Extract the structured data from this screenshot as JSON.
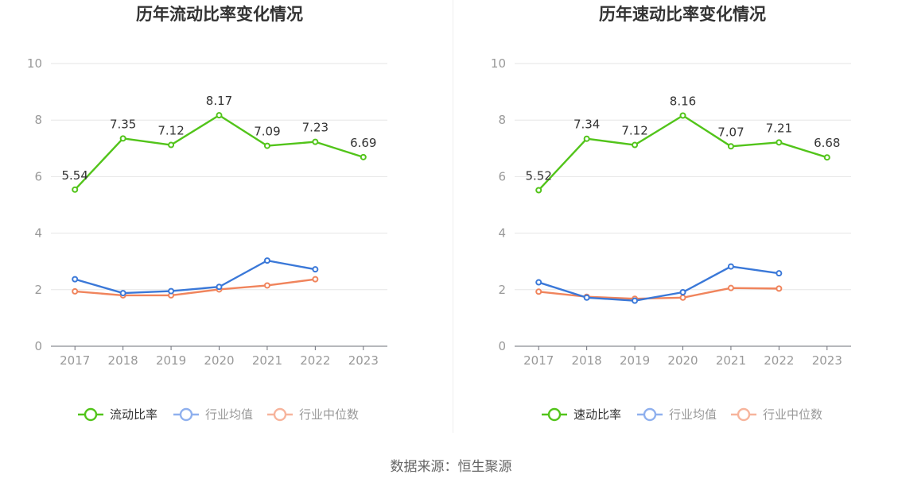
{
  "source_label": "数据来源：恒生聚源",
  "chart_data": [
    {
      "type": "line",
      "title": "历年流动比率变化情况",
      "categories": [
        "2017",
        "2018",
        "2019",
        "2020",
        "2021",
        "2022",
        "2023"
      ],
      "ylim": [
        0,
        10
      ],
      "yticks": [
        0,
        2,
        4,
        6,
        8,
        10
      ],
      "grid": true,
      "legend_position": "bottom",
      "series": [
        {
          "name": "流动比率",
          "color": "#52c41a",
          "values": [
            5.54,
            7.35,
            7.12,
            8.17,
            7.09,
            7.23,
            6.69
          ],
          "labels": [
            "5.54",
            "7.35",
            "7.12",
            "8.17",
            "7.09",
            "7.23",
            "6.69"
          ]
        },
        {
          "name": "行业均值",
          "color": "#3a78d8",
          "legend_color": "#8fb0ee",
          "values": [
            2.37,
            1.88,
            1.95,
            2.1,
            3.03,
            2.72,
            null
          ]
        },
        {
          "name": "行业中位数",
          "color": "#f0845c",
          "legend_color": "#f7b49c",
          "values": [
            1.94,
            1.8,
            1.8,
            2.01,
            2.15,
            2.37,
            null
          ]
        }
      ]
    },
    {
      "type": "line",
      "title": "历年速动比率变化情况",
      "categories": [
        "2017",
        "2018",
        "2019",
        "2020",
        "2021",
        "2022",
        "2023"
      ],
      "ylim": [
        0,
        10
      ],
      "yticks": [
        0,
        2,
        4,
        6,
        8,
        10
      ],
      "grid": true,
      "legend_position": "bottom",
      "series": [
        {
          "name": "速动比率",
          "color": "#52c41a",
          "values": [
            5.52,
            7.34,
            7.12,
            8.16,
            7.07,
            7.21,
            6.68
          ],
          "labels": [
            "5.52",
            "7.34",
            "7.12",
            "8.16",
            "7.07",
            "7.21",
            "6.68"
          ]
        },
        {
          "name": "行业均值",
          "color": "#3a78d8",
          "legend_color": "#8fb0ee",
          "values": [
            2.26,
            1.72,
            1.61,
            1.91,
            2.82,
            2.58,
            null
          ]
        },
        {
          "name": "行业中位数",
          "color": "#f0845c",
          "legend_color": "#f7b49c",
          "values": [
            1.93,
            1.75,
            1.68,
            1.72,
            2.06,
            2.04,
            null
          ]
        }
      ]
    }
  ]
}
